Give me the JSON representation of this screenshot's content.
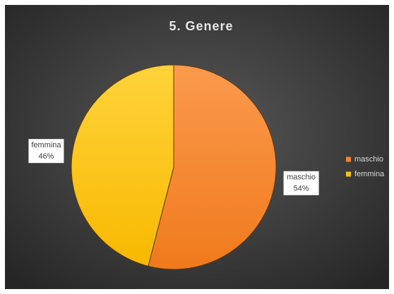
{
  "chart_data": {
    "type": "pie",
    "title": "5. Genere",
    "categories": [
      "maschio",
      "femmina"
    ],
    "values": [
      54,
      46
    ],
    "value_labels": [
      "54%",
      "46%"
    ],
    "colors": [
      "#f7842c",
      "#ffc20e"
    ],
    "legend": "right"
  }
}
